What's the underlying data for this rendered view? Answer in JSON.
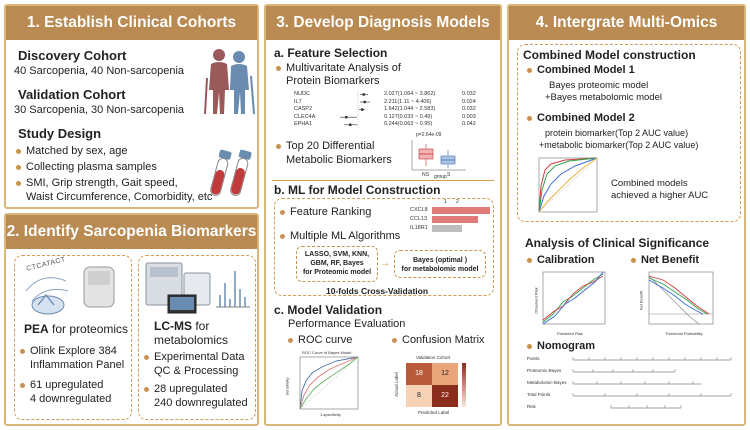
{
  "panel1": {
    "title": "1. Establish Clinical Cohorts",
    "discovery_title": "Discovery Cohort",
    "discovery_desc": "40 Sarcopenia, 40 Non-sarcopenia",
    "validation_title": "Validation Cohort",
    "validation_desc": "30 Sarcopenia, 30 Non-sarcopenia",
    "design_title": "Study Design",
    "design_items": [
      "Matched by sex, age",
      "Collecting plasma samples",
      "SMI, Grip strength, Gait speed,",
      "Waist Circumference, Comorbidity, etc"
    ]
  },
  "panel2": {
    "title": "2. Identify Sarcopenia Biomarkers",
    "pea_bold": "PEA",
    "pea_rest": " for proteomics",
    "pea_items": [
      "Olink Explore 384",
      "Inflammation Panel",
      "61 upregulated",
      "4 downregulated"
    ],
    "lcms_bold": "LC-MS",
    "lcms_rest1": " for",
    "lcms_rest2": "metabolomics",
    "lcms_items": [
      "Experimental Data",
      "QC & Processing",
      "28 upregulated",
      "240 downregulated"
    ],
    "pea_letters": "CTCATACT"
  },
  "panel3": {
    "title": "3. Develop Diagnosis Models",
    "a_title": "a. Feature Selection",
    "a_bullet1": "Multivaritate Analysis of",
    "a_bullet1b": "Protein Biomarkers",
    "forest_rows": [
      {
        "name": "NUDC",
        "ci": "2.027(1.064 ~ 3.862)",
        "p": "0.032"
      },
      {
        "name": "IL7",
        "ci": "2.211(1.11 ~ 4.406)",
        "p": "0.024"
      },
      {
        "name": "CASP2",
        "ci": "1.642(1.044 ~ 2.583)",
        "p": "0.032"
      },
      {
        "name": "CLEC4A",
        "ci": "0.127(0.033 ~ 0.49)",
        "p": "0.003"
      },
      {
        "name": "EPHA1",
        "ci": "0.244(0.063 ~ 0.95)",
        "p": "0.042"
      }
    ],
    "a_bullet2": "Top 20 Differential",
    "a_bullet2b": "Metabolic Biomarkers",
    "box_p": "p=2.64e-09",
    "box_xlabel": "group",
    "box_cats": [
      "NS",
      "S"
    ],
    "b_title": "b. ML for Model Construction",
    "b_bullet1": "Feature Ranking",
    "rank_labels": [
      "CXCL8",
      "CCL13",
      "IL18R1"
    ],
    "rank_ticks": [
      "1",
      "2"
    ],
    "b_bullet2": "Multiple ML Algorithms",
    "algo_box": "LASSO, SVM, KNN, GBM, RF, Bayes for Proteomic model",
    "algo_line1": "LASSO, SVM, KNN,",
    "algo_line2": "GBM, RF, Bayes",
    "algo_line3": "for Proteomic model",
    "bayes_line1": "Bayes (optimal )",
    "bayes_line2": "for metabolomic model",
    "cv_label": "10-folds Cross-Validation",
    "c_title": "c. Model Validation",
    "c_sub": "Performance Evaluation",
    "roc_label": "ROC curve",
    "cm_label": "Confusion Matrix",
    "roc_title": "ROC Curve of Bayes Model",
    "roc_xlabel": "1-specificity",
    "roc_ylabel": "Sensitivity",
    "cm_title": "Validation Cohort",
    "cm_xlabel": "Predicted Label",
    "cm_ylabel": "Actual Label",
    "cm_values": [
      "18",
      "12",
      "8",
      "22"
    ]
  },
  "panel4": {
    "title": "4. Intergrate Multi-Omics",
    "combined_title": "Combined Model construction",
    "m1_title": "Combined Model 1",
    "m1_line1": "Bayes proteomic model",
    "m1_line2": "+Bayes metabolomic model",
    "m2_title": "Combined Model 2",
    "m2_line1": "protein biomarker(Top 2 AUC value)",
    "m2_line2": "+metabolic biomarker(Top 2 AUC value)",
    "auc_note1": "Combined models",
    "auc_note2": "achieved a higher AUC",
    "clinical_title": "Analysis of Clinical Significance",
    "calibration": "Calibration",
    "net_benefit": "Net Benefit",
    "nomogram": "Nomogram",
    "nomo_rows": [
      "Points",
      "Proteomic-Bayes",
      "Metabolomic-Bayes",
      "Total Points",
      "Risk"
    ],
    "cal_xlabel": "Predicted Risk",
    "cal_ylabel": "Observed Risk",
    "nb_xlabel": "Threshold Probability",
    "nb_ylabel": "Net Benefit"
  },
  "colors": {
    "header": "#b98a52",
    "border": "#d9b77a",
    "dash": "#d29a55",
    "bullet": "#c8924e",
    "accent_red": "#e07a78"
  }
}
